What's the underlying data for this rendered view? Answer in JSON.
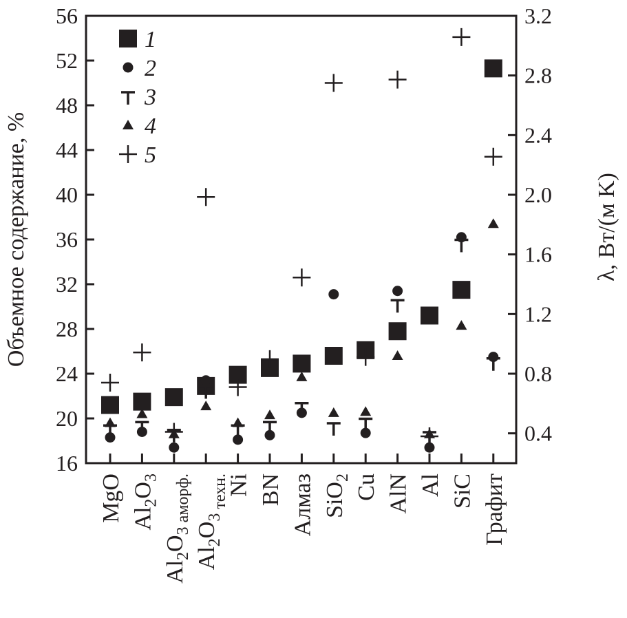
{
  "chart_data": {
    "type": "scatter",
    "ylabel": "Объемное содержание, %",
    "y2label": "λ, Вт/(м K)",
    "ylim": [
      16,
      56
    ],
    "yticks": [
      16,
      20,
      24,
      28,
      32,
      36,
      40,
      44,
      48,
      52,
      56
    ],
    "y2lim": [
      0.2,
      3.2
    ],
    "y2ticks": [
      "0.4",
      "0.8",
      "1.2",
      "1.6",
      "2.0",
      "2.4",
      "2.8",
      "3.2"
    ],
    "grid": false,
    "legend_placement": "top-left",
    "categories": [
      [
        {
          "t": "MgO"
        }
      ],
      [
        {
          "t": "Al"
        },
        {
          "s": "2"
        },
        {
          "t": "O"
        },
        {
          "s": "3"
        }
      ],
      [
        {
          "t": "Al"
        },
        {
          "s": "2"
        },
        {
          "t": "O"
        },
        {
          "s": "3 аморф."
        }
      ],
      [
        {
          "t": "Al"
        },
        {
          "s": "2"
        },
        {
          "t": "O"
        },
        {
          "s": "3"
        },
        {
          "s": " техн."
        }
      ],
      [
        {
          "t": "Ni"
        }
      ],
      [
        {
          "t": "BN"
        }
      ],
      [
        {
          "t": "Алмаз"
        }
      ],
      [
        {
          "t": "SiO"
        },
        {
          "s": "2"
        }
      ],
      [
        {
          "t": "Cu"
        }
      ],
      [
        {
          "t": "AlN"
        }
      ],
      [
        {
          "t": "Al"
        }
      ],
      [
        {
          "t": "SiC"
        }
      ],
      [
        {
          "t": "Графит"
        }
      ]
    ],
    "series": [
      {
        "name": "1",
        "marker": "square",
        "values": [
          21.2,
          21.5,
          21.9,
          22.9,
          23.9,
          24.5,
          24.9,
          25.6,
          26.1,
          27.8,
          29.2,
          31.5,
          51.3
        ]
      },
      {
        "name": "2",
        "marker": "circle",
        "values": [
          18.3,
          18.8,
          17.4,
          23.4,
          18.1,
          18.5,
          20.5,
          31.1,
          18.7,
          31.4,
          17.4,
          36.2,
          25.5
        ]
      },
      {
        "name": "3",
        "marker": "tee",
        "values": [
          19.0,
          19.3,
          18.6,
          22.5,
          19.0,
          19.3,
          21.0,
          19.2,
          19.6,
          30.2,
          18.4,
          35.6,
          25.0
        ]
      },
      {
        "name": "4",
        "marker": "triangle",
        "values": [
          19.6,
          20.4,
          18.6,
          21.1,
          19.6,
          20.3,
          23.7,
          20.5,
          20.6,
          25.6,
          18.6,
          28.3,
          37.4
        ]
      },
      {
        "name": "5",
        "marker": "plus",
        "values": [
          23.2,
          25.9,
          18.8,
          39.8,
          22.8,
          25.3,
          32.6,
          50.0,
          25.5,
          50.3,
          18.4,
          54.1,
          43.4
        ]
      }
    ],
    "color": "#231f20"
  }
}
